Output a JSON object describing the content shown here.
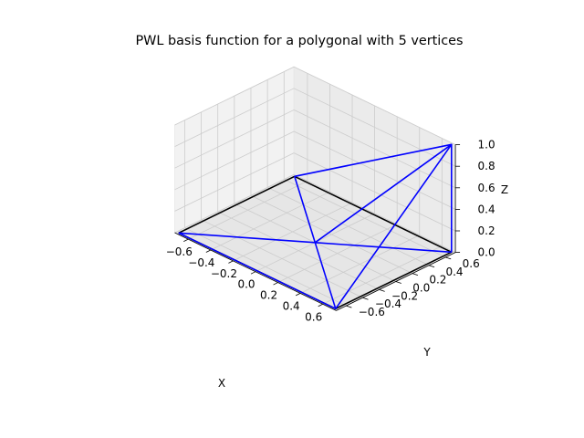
{
  "chart_data": {
    "type": "line",
    "title": "PWL basis function for a polygonal with 5 vertices",
    "xlabel": "X",
    "ylabel": "Y",
    "zlabel": "Z",
    "xlim": [
      -0.72,
      0.72
    ],
    "ylim": [
      -0.72,
      0.72
    ],
    "zlim": [
      0.0,
      1.0
    ],
    "xticks": [
      "−0.6",
      "−0.4",
      "−0.2",
      "0.0",
      "0.2",
      "0.4",
      "0.6"
    ],
    "yticks": [
      "−0.6",
      "−0.4",
      "−0.2",
      "0.0",
      "0.2",
      "0.4",
      "0.6"
    ],
    "zticks": [
      "0.0",
      "0.2",
      "0.4",
      "0.6",
      "0.8",
      "1.0"
    ],
    "grid": true,
    "series": [
      {
        "color": "#000000",
        "segments": [
          [
            [
              -0.7,
              -0.7,
              0
            ],
            [
              0.7,
              -0.7,
              0
            ],
            [
              0.7,
              0.7,
              0
            ],
            [
              -0.7,
              0.7,
              0
            ],
            [
              -0.7,
              -0.7,
              0
            ]
          ]
        ]
      },
      {
        "color": "#0000ff",
        "segments": [
          [
            [
              -0.7,
              -0.7,
              0
            ],
            [
              0.7,
              -0.7,
              0
            ],
            [
              0.7,
              0.7,
              1
            ],
            [
              -0.7,
              0.7,
              0
            ]
          ],
          [
            [
              -0.7,
              -0.7,
              0
            ],
            [
              0,
              0,
              0
            ]
          ],
          [
            [
              0.7,
              -0.7,
              0
            ],
            [
              0,
              0,
              0
            ]
          ],
          [
            [
              -0.7,
              0.7,
              0
            ],
            [
              0,
              0,
              0
            ]
          ],
          [
            [
              0,
              0,
              0
            ],
            [
              0.7,
              0.7,
              0
            ]
          ],
          [
            [
              0.7,
              0.7,
              0
            ],
            [
              0.7,
              0.7,
              1
            ]
          ],
          [
            [
              0,
              0,
              0
            ],
            [
              0.7,
              0.7,
              1
            ]
          ]
        ]
      }
    ]
  }
}
